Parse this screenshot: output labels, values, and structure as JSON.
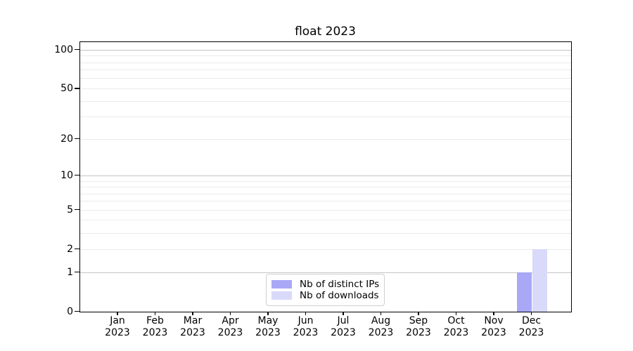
{
  "title": "float 2023",
  "colors": {
    "bar_distinct_ips": "#a8a8f6",
    "bar_downloads": "#d9d9fa",
    "grid_major": "#c4c4c4",
    "grid_minor": "#ebebeb",
    "axis": "#000000",
    "legend_border": "#cfcfcf"
  },
  "chart_data": {
    "type": "bar",
    "title": "float 2023",
    "xlabel": "",
    "ylabel": "",
    "grid": true,
    "legend_position": "lower center",
    "categories": [
      "Jan 2023",
      "Feb 2023",
      "Mar 2023",
      "Apr 2023",
      "May 2023",
      "Jun 2023",
      "Jul 2023",
      "Aug 2023",
      "Sep 2023",
      "Oct 2023",
      "Nov 2023",
      "Dec 2023"
    ],
    "x_tick_labels": [
      {
        "month": "Jan",
        "year": "2023"
      },
      {
        "month": "Feb",
        "year": "2023"
      },
      {
        "month": "Mar",
        "year": "2023"
      },
      {
        "month": "Apr",
        "year": "2023"
      },
      {
        "month": "May",
        "year": "2023"
      },
      {
        "month": "Jun",
        "year": "2023"
      },
      {
        "month": "Jul",
        "year": "2023"
      },
      {
        "month": "Aug",
        "year": "2023"
      },
      {
        "month": "Sep",
        "year": "2023"
      },
      {
        "month": "Oct",
        "year": "2023"
      },
      {
        "month": "Nov",
        "year": "2023"
      },
      {
        "month": "Dec",
        "year": "2023"
      }
    ],
    "series": [
      {
        "name": "Nb of distinct IPs",
        "color": "#a8a8f6",
        "values": [
          0,
          0,
          0,
          0,
          0,
          0,
          0,
          0,
          0,
          0,
          0,
          1
        ]
      },
      {
        "name": "Nb of downloads",
        "color": "#d9d9fa",
        "values": [
          0,
          0,
          0,
          0,
          0,
          0,
          0,
          0,
          0,
          0,
          0,
          2
        ]
      }
    ],
    "y_axis": {
      "scale": "log10(1+y)",
      "ylim": [
        0,
        115
      ],
      "tick_values": [
        0,
        1,
        2,
        5,
        10,
        20,
        50,
        100
      ],
      "major_gridlines": [
        1,
        10,
        100
      ],
      "minor_gridlines": [
        2,
        3,
        4,
        5,
        6,
        7,
        8,
        9,
        20,
        30,
        40,
        50,
        60,
        70,
        80,
        90
      ]
    }
  },
  "legend": {
    "items": [
      {
        "label": "Nb of distinct IPs",
        "color": "#a8a8f6"
      },
      {
        "label": "Nb of downloads",
        "color": "#d9d9fa"
      }
    ]
  }
}
